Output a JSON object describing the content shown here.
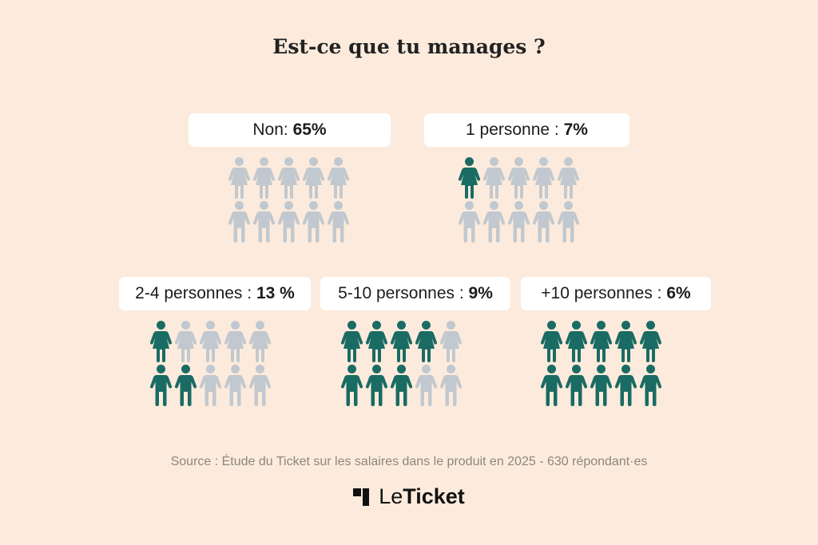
{
  "title": "Est-ce que tu manages ?",
  "colors": {
    "highlight": "#1a6b63",
    "muted": "#c1c8cf",
    "background": "#fcebdc",
    "pill": "#ffffff"
  },
  "chart_data": {
    "type": "pictogram",
    "title": "Est-ce que tu manages ?",
    "icons_per_group": 10,
    "categories": [
      {
        "label": "Non:",
        "value_text": "65%",
        "value": 65,
        "highlighted_icons": 0
      },
      {
        "label": "1 personne :",
        "value_text": "7%",
        "value": 7,
        "highlighted_icons": 1
      },
      {
        "label": "2-4 personnes :",
        "value_text": "13 %",
        "value": 13,
        "highlighted_icons": 3
      },
      {
        "label": "5-10 personnes :",
        "value_text": "9%",
        "value": 9,
        "highlighted_icons": 7
      },
      {
        "label": "+10 personnes :",
        "value_text": "6%",
        "value": 6,
        "highlighted_icons": 10
      }
    ]
  },
  "source": "Source : Étude du Ticket sur les salaires dans le produit en 2025 - 630 répondant·es",
  "brand": {
    "part1": "Le",
    "part2": "Ticket",
    "icon": "leticket-logo-icon"
  }
}
